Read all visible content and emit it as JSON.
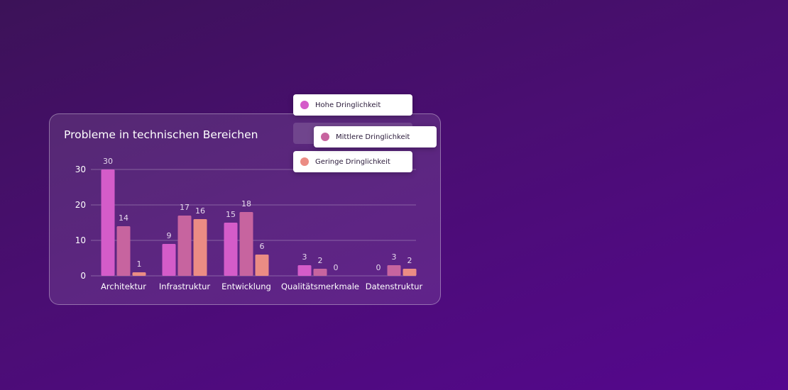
{
  "colors": {
    "high": "#d45cc9",
    "medium": "#c7649f",
    "low": "#eb8c84",
    "gridline": "rgba(255,255,255,0.28)",
    "text": "#ffffff",
    "label": "#e5d8ec"
  },
  "chart_data": {
    "type": "bar",
    "title": "Probleme in technischen Bereichen",
    "categories": [
      "Architektur",
      "Infrastruktur",
      "Entwicklung",
      "Qualitätsmerkmale",
      "Datenstruktur"
    ],
    "series": [
      {
        "name": "Hohe Dringlichkeit",
        "values": [
          30,
          9,
          15,
          3,
          0
        ]
      },
      {
        "name": "Mittlere Dringlichkeit",
        "values": [
          14,
          17,
          18,
          2,
          3
        ]
      },
      {
        "name": "Geringe Dringlichkeit",
        "values": [
          1,
          16,
          6,
          0,
          2
        ]
      }
    ],
    "yticks": [
      0,
      10,
      20,
      30
    ],
    "ylim": [
      0,
      30
    ],
    "grid": true,
    "data_labels": true,
    "legend_position": "top-right"
  }
}
